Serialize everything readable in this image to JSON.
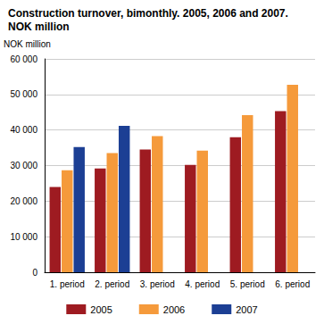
{
  "chart_data": {
    "type": "bar",
    "title": "Construction turnover, bimonthly. 2005, 2006 and 2007. NOK million",
    "y_label": "NOK million",
    "categories": [
      "1. period",
      "2. period",
      "3. period",
      "4. period",
      "5. period",
      "6. period"
    ],
    "series": [
      {
        "name": "2005",
        "color": "#9e1b21",
        "values": [
          24000,
          29200,
          34500,
          30200,
          38000,
          45300
        ]
      },
      {
        "name": "2006",
        "color": "#f59a3b",
        "values": [
          28700,
          33500,
          38300,
          34200,
          44200,
          52700
        ]
      },
      {
        "name": "2007",
        "color": "#1c3f94",
        "values": [
          35200,
          41200,
          null,
          null,
          null,
          null
        ]
      }
    ],
    "ylim": [
      0,
      60000
    ],
    "yticks": [
      0,
      {
        "value": 10000,
        "label": "10 000"
      },
      {
        "value": 20000,
        "label": "20 000"
      },
      {
        "value": 30000,
        "label": "30 000"
      },
      {
        "value": 40000,
        "label": "40 000"
      },
      {
        "value": 50000,
        "label": "50 000"
      },
      {
        "value": 60000,
        "label": "60 000"
      }
    ],
    "grid": true,
    "legend": "bottom"
  }
}
